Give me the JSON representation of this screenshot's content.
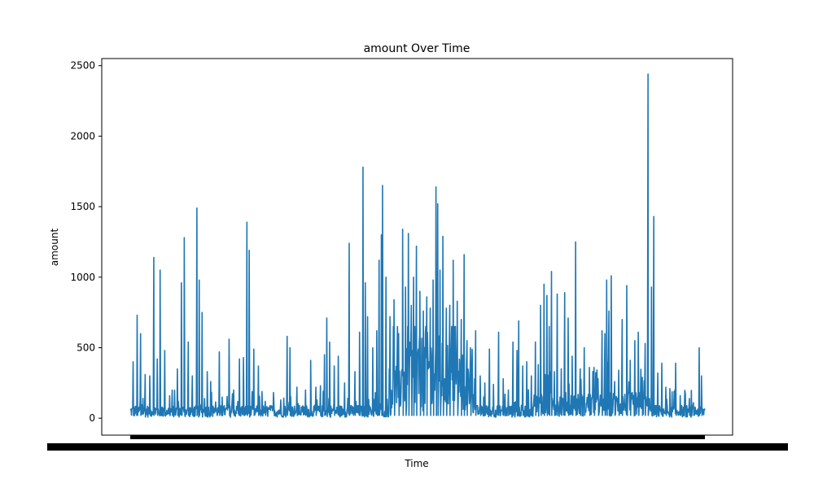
{
  "chart_data": {
    "type": "line",
    "title": "amount Over Time",
    "xlabel": "Time",
    "ylabel": "amount",
    "ylim": [
      -120,
      2550
    ],
    "yticks": [
      0,
      500,
      1000,
      1500,
      2000,
      2500
    ],
    "grid": false,
    "legend": "none",
    "series": [
      {
        "name": "",
        "color": "#1f77b4",
        "peaks": [
          [
            0.5,
            400
          ],
          [
            1.2,
            730
          ],
          [
            1.8,
            600
          ],
          [
            2.6,
            310
          ],
          [
            3.4,
            300
          ],
          [
            4.1,
            1140
          ],
          [
            4.7,
            420
          ],
          [
            5.2,
            1050
          ],
          [
            6.0,
            480
          ],
          [
            7.3,
            200
          ],
          [
            8.2,
            350
          ],
          [
            8.9,
            960
          ],
          [
            9.4,
            1280
          ],
          [
            10.1,
            540
          ],
          [
            10.8,
            300
          ],
          [
            11.6,
            1490
          ],
          [
            12.0,
            980
          ],
          [
            12.5,
            750
          ],
          [
            13.4,
            330
          ],
          [
            14.0,
            260
          ],
          [
            15.5,
            470
          ],
          [
            16.0,
            150
          ],
          [
            17.2,
            560
          ],
          [
            18.0,
            200
          ],
          [
            19.0,
            420
          ],
          [
            19.7,
            430
          ],
          [
            20.3,
            1390
          ],
          [
            20.7,
            1190
          ],
          [
            21.5,
            490
          ],
          [
            22.3,
            370
          ],
          [
            23.5,
            120
          ],
          [
            25.0,
            110
          ],
          [
            26.2,
            130
          ],
          [
            27.3,
            580
          ],
          [
            27.8,
            500
          ],
          [
            29.0,
            220
          ],
          [
            30.5,
            200
          ],
          [
            31.4,
            410
          ],
          [
            32.3,
            220
          ],
          [
            33.1,
            230
          ],
          [
            33.8,
            450
          ],
          [
            34.2,
            710
          ],
          [
            34.7,
            540
          ],
          [
            35.5,
            370
          ],
          [
            36.2,
            440
          ],
          [
            37.3,
            250
          ],
          [
            38.1,
            1240
          ],
          [
            39.1,
            330
          ],
          [
            39.9,
            610
          ],
          [
            40.5,
            1780
          ],
          [
            40.9,
            960
          ],
          [
            41.3,
            720
          ],
          [
            42.2,
            500
          ],
          [
            42.9,
            620
          ],
          [
            43.3,
            1120
          ],
          [
            43.7,
            1300
          ],
          [
            43.9,
            1650
          ],
          [
            44.5,
            1000
          ],
          [
            45.2,
            720
          ],
          [
            45.9,
            840
          ],
          [
            46.7,
            600
          ],
          [
            47.4,
            1340
          ],
          [
            47.9,
            930
          ],
          [
            48.4,
            1310
          ],
          [
            48.9,
            800
          ],
          [
            49.3,
            1000
          ],
          [
            49.8,
            1220
          ],
          [
            50.4,
            900
          ],
          [
            51.0,
            760
          ],
          [
            51.6,
            860
          ],
          [
            52.2,
            780
          ],
          [
            52.7,
            980
          ],
          [
            53.2,
            1640
          ],
          [
            53.5,
            1520
          ],
          [
            53.9,
            1050
          ],
          [
            54.4,
            1290
          ],
          [
            55.0,
            780
          ],
          [
            55.6,
            800
          ],
          [
            56.2,
            1120
          ],
          [
            56.9,
            830
          ],
          [
            57.6,
            700
          ],
          [
            58.1,
            1160
          ],
          [
            58.6,
            550
          ],
          [
            59.2,
            500
          ],
          [
            60.1,
            620
          ],
          [
            60.9,
            300
          ],
          [
            61.7,
            250
          ],
          [
            62.5,
            490
          ],
          [
            63.2,
            240
          ],
          [
            64.1,
            610
          ],
          [
            64.9,
            280
          ],
          [
            65.8,
            200
          ],
          [
            66.6,
            540
          ],
          [
            67.3,
            480
          ],
          [
            67.6,
            690
          ],
          [
            68.3,
            370
          ],
          [
            69.0,
            400
          ],
          [
            69.8,
            300
          ],
          [
            70.5,
            540
          ],
          [
            71.0,
            380
          ],
          [
            71.4,
            800
          ],
          [
            72.0,
            950
          ],
          [
            72.5,
            870
          ],
          [
            72.9,
            650
          ],
          [
            73.3,
            1040
          ],
          [
            73.8,
            330
          ],
          [
            74.3,
            880
          ],
          [
            75.0,
            350
          ],
          [
            75.6,
            890
          ],
          [
            76.2,
            710
          ],
          [
            76.9,
            440
          ],
          [
            77.5,
            1250
          ],
          [
            78.3,
            350
          ],
          [
            79.0,
            500
          ],
          [
            79.9,
            360
          ],
          [
            80.7,
            360
          ],
          [
            81.4,
            280
          ],
          [
            82.1,
            620
          ],
          [
            82.6,
            600
          ],
          [
            82.9,
            980
          ],
          [
            83.3,
            760
          ],
          [
            83.7,
            1010
          ],
          [
            84.3,
            260
          ],
          [
            85.0,
            340
          ],
          [
            85.6,
            700
          ],
          [
            86.4,
            940
          ],
          [
            87.0,
            410
          ],
          [
            87.8,
            550
          ],
          [
            88.4,
            610
          ],
          [
            89.1,
            290
          ],
          [
            89.6,
            530
          ],
          [
            90.1,
            2440
          ],
          [
            90.7,
            930
          ],
          [
            91.1,
            1430
          ],
          [
            91.8,
            320
          ],
          [
            92.5,
            390
          ],
          [
            93.2,
            220
          ],
          [
            93.9,
            210
          ],
          [
            94.9,
            390
          ],
          [
            95.7,
            160
          ],
          [
            96.6,
            170
          ],
          [
            97.3,
            140
          ],
          [
            98.0,
            110
          ],
          [
            99.0,
            500
          ],
          [
            99.4,
            300
          ]
        ]
      }
    ]
  }
}
